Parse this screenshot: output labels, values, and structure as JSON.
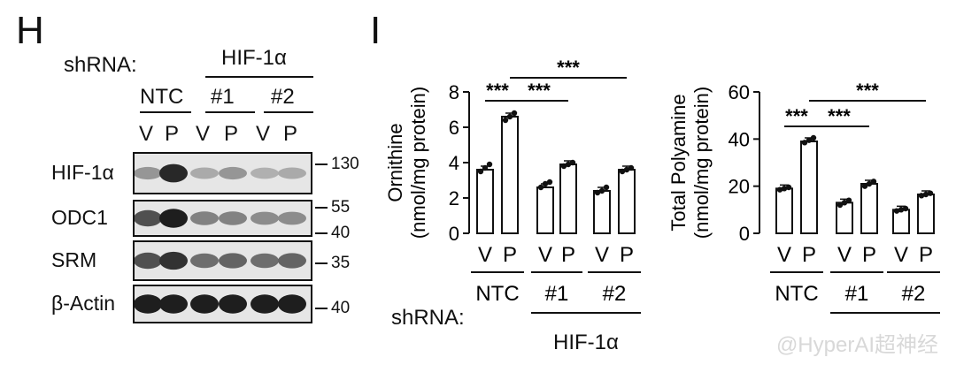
{
  "panel_h": {
    "letter": "H",
    "shrna_label": "shRNA:",
    "hif_group_label": "HIF-1α",
    "groups": [
      "NTC",
      "#1",
      "#2"
    ],
    "lanes": [
      "V",
      "P",
      "V",
      "P",
      "V",
      "P"
    ],
    "rows": [
      {
        "protein": "HIF-1α",
        "mw": [
          "130"
        ],
        "band_intensity": [
          0.35,
          0.9,
          0.25,
          0.35,
          0.22,
          0.25
        ]
      },
      {
        "protein": "ODC1",
        "mw": [
          "55",
          "40"
        ],
        "band_intensity": [
          0.7,
          0.95,
          0.45,
          0.45,
          0.4,
          0.4
        ]
      },
      {
        "protein": "SRM",
        "mw": [
          "35"
        ],
        "band_intensity": [
          0.7,
          0.85,
          0.55,
          0.6,
          0.55,
          0.6
        ]
      },
      {
        "protein": "β-Actin",
        "mw": [
          "40"
        ],
        "band_intensity": [
          0.95,
          0.95,
          0.95,
          0.95,
          0.95,
          0.95
        ]
      }
    ]
  },
  "panel_i": {
    "letter": "I",
    "shrna_label": "shRNA:",
    "hif_group_label": "HIF-1α",
    "watermark": "@HyperAI超神经"
  },
  "chart_data": [
    {
      "type": "bar",
      "ylabel_line1": "Ornithine",
      "ylabel_line2": "(nmol/mg protein)",
      "ylim": [
        0,
        8
      ],
      "yticks": [
        "0",
        "2",
        "4",
        "6",
        "8"
      ],
      "categories": [
        "V",
        "P",
        "V",
        "P",
        "V",
        "P"
      ],
      "groups": [
        "NTC",
        "#1",
        "#2"
      ],
      "values": [
        3.6,
        6.6,
        2.6,
        3.9,
        2.4,
        3.6
      ],
      "points": [
        [
          3.5,
          3.7,
          3.9
        ],
        [
          6.4,
          6.6,
          6.8
        ],
        [
          2.6,
          2.8,
          2.9
        ],
        [
          3.8,
          3.9,
          4.0
        ],
        [
          2.3,
          2.4,
          2.6
        ],
        [
          3.5,
          3.6,
          3.7
        ]
      ],
      "significance": [
        {
          "from": 0,
          "to": 1,
          "label": "***"
        },
        {
          "from": 1,
          "to": 3,
          "label": "***"
        },
        {
          "from": 1,
          "to": 5,
          "label": "***"
        }
      ]
    },
    {
      "type": "bar",
      "ylabel_line1": "Total Polyamine",
      "ylabel_line2": "(nmol/mg protein)",
      "ylim": [
        0,
        60
      ],
      "yticks": [
        "0",
        "20",
        "40",
        "60"
      ],
      "categories": [
        "V",
        "P",
        "V",
        "P",
        "V",
        "P"
      ],
      "groups": [
        "NTC",
        "#1",
        "#2"
      ],
      "values": [
        19,
        39,
        13,
        21,
        10,
        16.5
      ],
      "points": [
        [
          18.5,
          19,
          19.5
        ],
        [
          38.5,
          39.5,
          40.5
        ],
        [
          12,
          13,
          14
        ],
        [
          20,
          21,
          22
        ],
        [
          9.5,
          10,
          10.5
        ],
        [
          16,
          16.5,
          17
        ]
      ],
      "significance": [
        {
          "from": 0,
          "to": 1,
          "label": "***"
        },
        {
          "from": 1,
          "to": 3,
          "label": "***"
        },
        {
          "from": 1,
          "to": 5,
          "label": "***"
        }
      ]
    }
  ]
}
